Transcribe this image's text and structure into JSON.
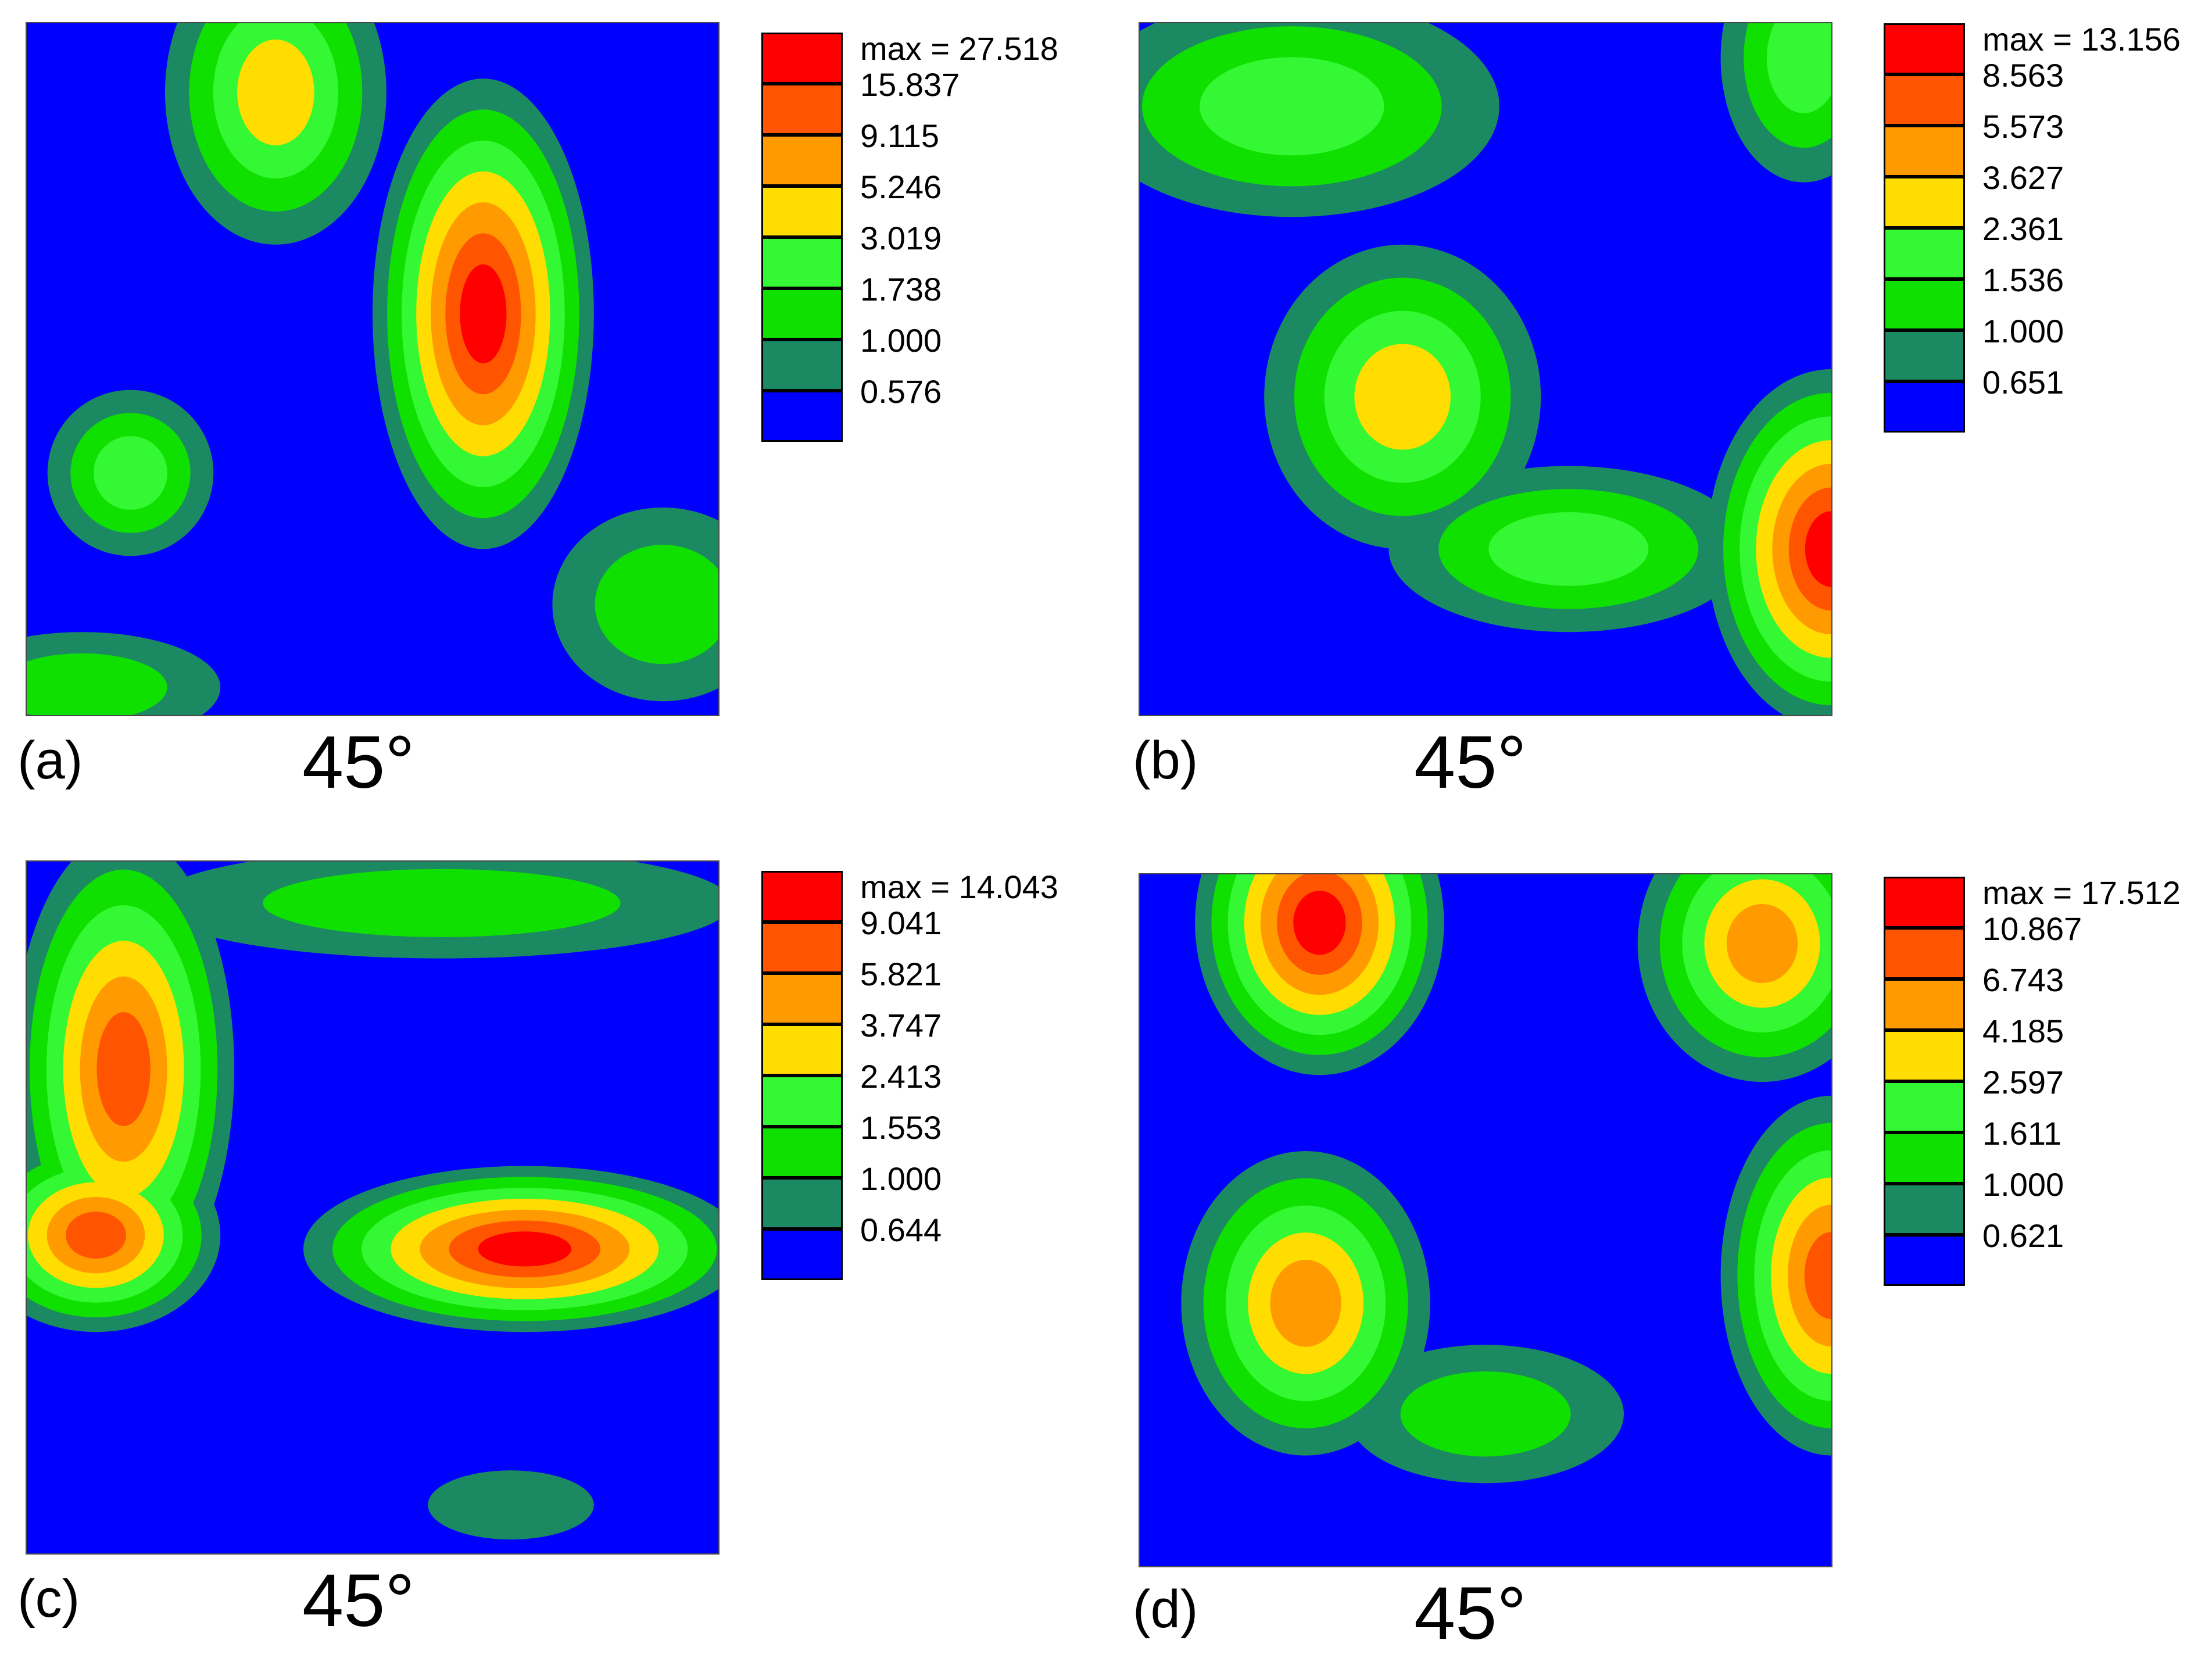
{
  "colors": {
    "level0": "#0000ff",
    "level1": "#1b8a62",
    "level2": "#10e000",
    "level3": "#33f833",
    "level4": "#ffdd00",
    "level5": "#ff9a00",
    "level6": "#ff5500",
    "level7": "#ff0000"
  },
  "chart_data": [
    {
      "type": "heatmap",
      "panel_label": "(a)",
      "angle_label": "45°",
      "max_label": "max = 27.518",
      "levels": [
        "15.837",
        "9.115",
        "5.246",
        "3.019",
        "1.738",
        "1.000",
        "0.576"
      ],
      "blobs": [
        {
          "cx": 0.66,
          "cy": 0.42,
          "peak": 7,
          "sx": 0.16,
          "sy": 0.34
        },
        {
          "cx": 0.36,
          "cy": 0.1,
          "peak": 4,
          "sx": 0.16,
          "sy": 0.22
        },
        {
          "cx": 0.15,
          "cy": 0.65,
          "peak": 3,
          "sx": 0.12,
          "sy": 0.12
        },
        {
          "cx": 0.92,
          "cy": 0.84,
          "peak": 2,
          "sx": 0.16,
          "sy": 0.14
        },
        {
          "cx": 0.08,
          "cy": 0.96,
          "peak": 2,
          "sx": 0.2,
          "sy": 0.08
        }
      ]
    },
    {
      "type": "heatmap",
      "panel_label": "(b)",
      "angle_label": "45°",
      "max_label": "max = 13.156",
      "levels": [
        "8.563",
        "5.573",
        "3.627",
        "2.361",
        "1.536",
        "1.000",
        "0.651"
      ],
      "blobs": [
        {
          "cx": 1.0,
          "cy": 0.76,
          "peak": 7,
          "sx": 0.18,
          "sy": 0.26
        },
        {
          "cx": 0.38,
          "cy": 0.54,
          "peak": 4,
          "sx": 0.2,
          "sy": 0.22
        },
        {
          "cx": 0.22,
          "cy": 0.12,
          "peak": 3,
          "sx": 0.3,
          "sy": 0.16
        },
        {
          "cx": 0.62,
          "cy": 0.76,
          "peak": 3,
          "sx": 0.26,
          "sy": 0.12
        },
        {
          "cx": 0.96,
          "cy": 0.05,
          "peak": 3,
          "sx": 0.12,
          "sy": 0.18
        }
      ]
    },
    {
      "type": "heatmap",
      "panel_label": "(c)",
      "angle_label": "45°",
      "max_label": "max = 14.043",
      "levels": [
        "9.041",
        "5.821",
        "3.747",
        "2.413",
        "1.553",
        "1.000",
        "0.644"
      ],
      "blobs": [
        {
          "cx": 0.72,
          "cy": 0.56,
          "peak": 7,
          "sx": 0.32,
          "sy": 0.12
        },
        {
          "cx": 0.14,
          "cy": 0.3,
          "peak": 6,
          "sx": 0.16,
          "sy": 0.34
        },
        {
          "cx": 0.1,
          "cy": 0.54,
          "peak": 6,
          "sx": 0.18,
          "sy": 0.14
        },
        {
          "cx": 0.6,
          "cy": 0.06,
          "peak": 2,
          "sx": 0.42,
          "sy": 0.08
        },
        {
          "cx": 0.7,
          "cy": 0.93,
          "peak": 1,
          "sx": 0.12,
          "sy": 0.05
        }
      ]
    },
    {
      "type": "heatmap",
      "panel_label": "(d)",
      "angle_label": "45°",
      "max_label": "max = 17.512",
      "levels": [
        "10.867",
        "6.743",
        "4.185",
        "2.597",
        "1.611",
        "1.000",
        "0.621"
      ],
      "blobs": [
        {
          "cx": 0.26,
          "cy": 0.07,
          "peak": 7,
          "sx": 0.18,
          "sy": 0.22
        },
        {
          "cx": 0.24,
          "cy": 0.62,
          "peak": 5,
          "sx": 0.18,
          "sy": 0.22
        },
        {
          "cx": 1.0,
          "cy": 0.58,
          "peak": 6,
          "sx": 0.16,
          "sy": 0.26
        },
        {
          "cx": 0.9,
          "cy": 0.1,
          "peak": 5,
          "sx": 0.18,
          "sy": 0.2
        },
        {
          "cx": 0.5,
          "cy": 0.78,
          "peak": 2,
          "sx": 0.2,
          "sy": 0.1
        }
      ]
    }
  ]
}
